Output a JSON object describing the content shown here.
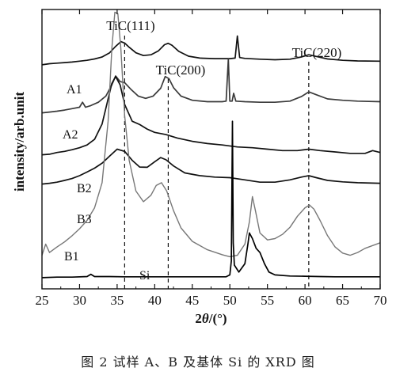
{
  "chart_data": {
    "type": "line",
    "caption": "图 2   试样 A、B 及基体 Si 的 XRD 图",
    "xlabel": "2θ/(°)",
    "ylabel": "intensity/arb.unit",
    "xlim": [
      25,
      70
    ],
    "xticks": [
      25,
      30,
      35,
      40,
      45,
      50,
      55,
      60,
      65,
      70
    ],
    "grid": false,
    "reference_lines": [
      {
        "label": "TiC(111)",
        "x": 36.0
      },
      {
        "label": "TiC(200)",
        "x": 41.8
      },
      {
        "label": "TiC(220)",
        "x": 60.5
      }
    ],
    "series": [
      {
        "name": "A1",
        "color": "#111111",
        "points": [
          [
            25.0,
            0.802
          ],
          [
            26.0,
            0.806
          ],
          [
            27.0,
            0.808
          ],
          [
            28.0,
            0.81
          ],
          [
            29.0,
            0.812
          ],
          [
            30.0,
            0.815
          ],
          [
            31.0,
            0.818
          ],
          [
            32.0,
            0.823
          ],
          [
            33.0,
            0.83
          ],
          [
            34.0,
            0.845
          ],
          [
            34.8,
            0.868
          ],
          [
            35.5,
            0.885
          ],
          [
            36.0,
            0.88
          ],
          [
            36.6,
            0.865
          ],
          [
            37.5,
            0.845
          ],
          [
            38.5,
            0.835
          ],
          [
            39.5,
            0.838
          ],
          [
            40.5,
            0.852
          ],
          [
            41.3,
            0.874
          ],
          [
            41.8,
            0.879
          ],
          [
            42.3,
            0.872
          ],
          [
            43.2,
            0.85
          ],
          [
            44.5,
            0.833
          ],
          [
            46.0,
            0.826
          ],
          [
            48.0,
            0.824
          ],
          [
            50.0,
            0.824
          ],
          [
            50.7,
            0.826
          ],
          [
            51.0,
            0.905
          ],
          [
            51.3,
            0.828
          ],
          [
            52.0,
            0.825
          ],
          [
            54.0,
            0.822
          ],
          [
            56.0,
            0.82
          ],
          [
            58.0,
            0.822
          ],
          [
            59.5,
            0.83
          ],
          [
            60.5,
            0.838
          ],
          [
            61.5,
            0.832
          ],
          [
            63.0,
            0.823
          ],
          [
            65.0,
            0.818
          ],
          [
            67.0,
            0.816
          ],
          [
            70.0,
            0.815
          ]
        ]
      },
      {
        "name": "A2",
        "color": "#3a3a3a",
        "points": [
          [
            25.0,
            0.63
          ],
          [
            26.0,
            0.633
          ],
          [
            27.0,
            0.636
          ],
          [
            28.0,
            0.64
          ],
          [
            29.0,
            0.645
          ],
          [
            30.0,
            0.65
          ],
          [
            30.4,
            0.668
          ],
          [
            30.8,
            0.65
          ],
          [
            31.5,
            0.656
          ],
          [
            32.5,
            0.668
          ],
          [
            33.5,
            0.69
          ],
          [
            34.3,
            0.73
          ],
          [
            34.8,
            0.762
          ],
          [
            35.4,
            0.742
          ],
          [
            36.0,
            0.738
          ],
          [
            36.8,
            0.715
          ],
          [
            37.8,
            0.69
          ],
          [
            38.8,
            0.682
          ],
          [
            39.8,
            0.69
          ],
          [
            40.8,
            0.718
          ],
          [
            41.4,
            0.76
          ],
          [
            41.9,
            0.752
          ],
          [
            42.5,
            0.72
          ],
          [
            43.5,
            0.69
          ],
          [
            45.0,
            0.675
          ],
          [
            47.0,
            0.67
          ],
          [
            49.0,
            0.67
          ],
          [
            49.5,
            0.672
          ],
          [
            49.8,
            0.822
          ],
          [
            50.0,
            0.672
          ],
          [
            50.3,
            0.672
          ],
          [
            50.5,
            0.7
          ],
          [
            50.8,
            0.672
          ],
          [
            52.0,
            0.67
          ],
          [
            54.0,
            0.668
          ],
          [
            56.0,
            0.668
          ],
          [
            58.0,
            0.672
          ],
          [
            59.5,
            0.688
          ],
          [
            60.5,
            0.705
          ],
          [
            61.5,
            0.695
          ],
          [
            63.0,
            0.68
          ],
          [
            65.0,
            0.675
          ],
          [
            67.0,
            0.672
          ],
          [
            70.0,
            0.67
          ]
        ]
      },
      {
        "name": "B2",
        "color": "#111111",
        "points": [
          [
            25.0,
            0.48
          ],
          [
            26.0,
            0.482
          ],
          [
            27.0,
            0.488
          ],
          [
            28.0,
            0.492
          ],
          [
            29.0,
            0.498
          ],
          [
            30.0,
            0.505
          ],
          [
            31.0,
            0.515
          ],
          [
            32.0,
            0.535
          ],
          [
            33.0,
            0.59
          ],
          [
            33.8,
            0.68
          ],
          [
            34.3,
            0.735
          ],
          [
            34.8,
            0.76
          ],
          [
            35.4,
            0.73
          ],
          [
            36.0,
            0.66
          ],
          [
            37.0,
            0.6
          ],
          [
            38.0,
            0.588
          ],
          [
            39.0,
            0.572
          ],
          [
            40.0,
            0.56
          ],
          [
            41.5,
            0.552
          ],
          [
            43.0,
            0.54
          ],
          [
            45.0,
            0.528
          ],
          [
            47.0,
            0.52
          ],
          [
            49.0,
            0.515
          ],
          [
            51.0,
            0.508
          ],
          [
            53.0,
            0.505
          ],
          [
            55.0,
            0.5
          ],
          [
            57.0,
            0.495
          ],
          [
            59.0,
            0.495
          ],
          [
            60.5,
            0.5
          ],
          [
            62.0,
            0.495
          ],
          [
            64.0,
            0.49
          ],
          [
            66.0,
            0.485
          ],
          [
            68.0,
            0.485
          ],
          [
            69.0,
            0.495
          ],
          [
            70.0,
            0.488
          ]
        ]
      },
      {
        "name": "B3",
        "color": "#111111",
        "points": [
          [
            25.0,
            0.375
          ],
          [
            26.0,
            0.378
          ],
          [
            27.0,
            0.382
          ],
          [
            28.0,
            0.388
          ],
          [
            29.0,
            0.395
          ],
          [
            30.0,
            0.405
          ],
          [
            31.0,
            0.418
          ],
          [
            32.0,
            0.432
          ],
          [
            33.0,
            0.45
          ],
          [
            34.0,
            0.475
          ],
          [
            35.0,
            0.5
          ],
          [
            36.0,
            0.492
          ],
          [
            37.0,
            0.46
          ],
          [
            38.0,
            0.436
          ],
          [
            39.0,
            0.435
          ],
          [
            40.0,
            0.455
          ],
          [
            40.8,
            0.47
          ],
          [
            41.5,
            0.462
          ],
          [
            42.5,
            0.44
          ],
          [
            44.0,
            0.415
          ],
          [
            46.0,
            0.405
          ],
          [
            48.0,
            0.4
          ],
          [
            50.0,
            0.398
          ],
          [
            52.0,
            0.39
          ],
          [
            54.0,
            0.382
          ],
          [
            56.0,
            0.382
          ],
          [
            58.0,
            0.39
          ],
          [
            59.5,
            0.4
          ],
          [
            60.5,
            0.405
          ],
          [
            61.5,
            0.398
          ],
          [
            63.0,
            0.388
          ],
          [
            65.0,
            0.383
          ],
          [
            67.0,
            0.38
          ],
          [
            70.0,
            0.378
          ]
        ]
      },
      {
        "name": "B1",
        "color": "#777777",
        "points": [
          [
            25.0,
            0.12
          ],
          [
            25.5,
            0.16
          ],
          [
            26.0,
            0.13
          ],
          [
            27.0,
            0.15
          ],
          [
            28.0,
            0.168
          ],
          [
            29.0,
            0.19
          ],
          [
            30.0,
            0.215
          ],
          [
            31.0,
            0.245
          ],
          [
            32.0,
            0.29
          ],
          [
            33.0,
            0.38
          ],
          [
            33.8,
            0.6
          ],
          [
            34.3,
            0.86
          ],
          [
            34.7,
            0.99
          ],
          [
            35.1,
            0.985
          ],
          [
            35.5,
            0.86
          ],
          [
            36.0,
            0.62
          ],
          [
            36.6,
            0.46
          ],
          [
            37.5,
            0.35
          ],
          [
            38.5,
            0.312
          ],
          [
            39.5,
            0.335
          ],
          [
            40.2,
            0.37
          ],
          [
            40.9,
            0.38
          ],
          [
            41.6,
            0.35
          ],
          [
            42.5,
            0.28
          ],
          [
            43.5,
            0.218
          ],
          [
            45.0,
            0.17
          ],
          [
            47.0,
            0.14
          ],
          [
            49.0,
            0.122
          ],
          [
            50.0,
            0.115
          ],
          [
            51.0,
            0.12
          ],
          [
            52.0,
            0.16
          ],
          [
            52.6,
            0.24
          ],
          [
            53.0,
            0.33
          ],
          [
            53.4,
            0.28
          ],
          [
            54.0,
            0.2
          ],
          [
            55.0,
            0.175
          ],
          [
            56.0,
            0.18
          ],
          [
            57.0,
            0.195
          ],
          [
            58.0,
            0.22
          ],
          [
            59.0,
            0.26
          ],
          [
            60.0,
            0.29
          ],
          [
            60.6,
            0.3
          ],
          [
            61.2,
            0.285
          ],
          [
            62.0,
            0.245
          ],
          [
            63.0,
            0.19
          ],
          [
            64.0,
            0.15
          ],
          [
            65.0,
            0.128
          ],
          [
            66.0,
            0.12
          ],
          [
            67.0,
            0.13
          ],
          [
            68.0,
            0.145
          ],
          [
            69.0,
            0.155
          ],
          [
            70.0,
            0.165
          ]
        ]
      },
      {
        "name": "Si",
        "color": "#000000",
        "points": [
          [
            25.0,
            0.04
          ],
          [
            27.0,
            0.042
          ],
          [
            29.0,
            0.042
          ],
          [
            31.0,
            0.044
          ],
          [
            31.5,
            0.052
          ],
          [
            32.0,
            0.044
          ],
          [
            34.0,
            0.044
          ],
          [
            36.0,
            0.043
          ],
          [
            38.0,
            0.043
          ],
          [
            40.0,
            0.043
          ],
          [
            42.0,
            0.043
          ],
          [
            44.0,
            0.043
          ],
          [
            46.0,
            0.043
          ],
          [
            48.0,
            0.043
          ],
          [
            49.5,
            0.043
          ],
          [
            50.0,
            0.05
          ],
          [
            50.2,
            0.1
          ],
          [
            50.35,
            0.6
          ],
          [
            50.45,
            0.165
          ],
          [
            50.6,
            0.085
          ],
          [
            51.2,
            0.06
          ],
          [
            52.0,
            0.09
          ],
          [
            52.4,
            0.16
          ],
          [
            52.6,
            0.2
          ],
          [
            53.0,
            0.18
          ],
          [
            53.5,
            0.145
          ],
          [
            54.0,
            0.13
          ],
          [
            54.6,
            0.09
          ],
          [
            55.2,
            0.06
          ],
          [
            56.0,
            0.05
          ],
          [
            58.0,
            0.046
          ],
          [
            60.0,
            0.045
          ],
          [
            62.0,
            0.044
          ],
          [
            64.0,
            0.043
          ],
          [
            66.0,
            0.043
          ],
          [
            68.0,
            0.043
          ],
          [
            70.0,
            0.043
          ]
        ]
      }
    ]
  }
}
